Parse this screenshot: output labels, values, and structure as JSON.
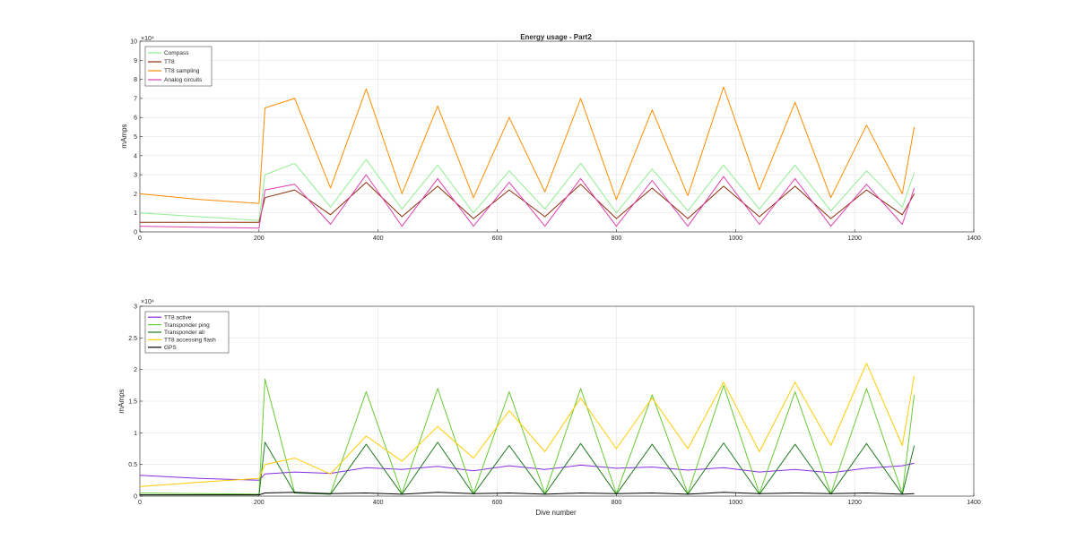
{
  "chart_data": [
    {
      "type": "line",
      "title": "Energy usage - Part2",
      "xlabel": "",
      "ylabel": "mAmps",
      "exponent_label": "×10⁴",
      "xlim": [
        0,
        1400
      ],
      "ylim": [
        0,
        10
      ],
      "xticks": [
        "0",
        "200",
        "400",
        "600",
        "800",
        "1000",
        "1200",
        "1400"
      ],
      "yticks": [
        "0",
        "1",
        "2",
        "3",
        "4",
        "5",
        "6",
        "7",
        "8",
        "9",
        "10"
      ],
      "grid": true,
      "legend_position": "top-left",
      "x": [
        0,
        100,
        200,
        210,
        260,
        320,
        380,
        440,
        500,
        560,
        620,
        680,
        740,
        800,
        860,
        920,
        980,
        1040,
        1100,
        1160,
        1220,
        1280,
        1300
      ],
      "series": [
        {
          "name": "Compass",
          "color": "#90ee90",
          "values": [
            1.0,
            0.8,
            0.6,
            3.0,
            3.6,
            1.3,
            3.8,
            1.2,
            3.5,
            1.0,
            3.2,
            1.2,
            3.6,
            1.0,
            3.3,
            1.1,
            3.5,
            1.2,
            3.5,
            1.1,
            3.2,
            1.3,
            3.1
          ]
        },
        {
          "name": "TT8",
          "color": "#8b2e0a",
          "values": [
            0.5,
            0.5,
            0.5,
            1.8,
            2.2,
            0.9,
            2.6,
            0.8,
            2.4,
            0.7,
            2.2,
            0.8,
            2.5,
            0.7,
            2.3,
            0.7,
            2.4,
            0.8,
            2.4,
            0.7,
            2.2,
            0.9,
            2.0
          ]
        },
        {
          "name": "TT8 sampling",
          "color": "#ff8c00",
          "values": [
            2.0,
            1.7,
            1.5,
            6.5,
            7.0,
            2.3,
            7.5,
            2.0,
            6.6,
            1.8,
            6.0,
            2.1,
            7.0,
            1.7,
            6.4,
            1.9,
            7.6,
            2.2,
            6.8,
            1.8,
            5.6,
            2.0,
            5.5
          ]
        },
        {
          "name": "Analog circuits",
          "color": "#e040b0",
          "values": [
            0.3,
            0.25,
            0.2,
            2.2,
            2.5,
            0.4,
            3.0,
            0.3,
            2.8,
            0.3,
            2.6,
            0.3,
            2.8,
            0.3,
            2.7,
            0.3,
            2.9,
            0.4,
            2.8,
            0.3,
            2.5,
            0.4,
            2.3
          ]
        }
      ]
    },
    {
      "type": "line",
      "title": "",
      "xlabel": "Dive number",
      "ylabel": "mAmps",
      "exponent_label": "×10⁴",
      "xlim": [
        0,
        1400
      ],
      "ylim": [
        0,
        3
      ],
      "xticks": [
        "0",
        "200",
        "400",
        "600",
        "800",
        "1000",
        "1200",
        "1400"
      ],
      "yticks": [
        "0",
        "0.5",
        "1",
        "1.5",
        "2",
        "2.5",
        "3"
      ],
      "grid": true,
      "legend_position": "top-left",
      "x": [
        0,
        100,
        200,
        210,
        260,
        320,
        380,
        440,
        500,
        560,
        620,
        680,
        740,
        800,
        860,
        920,
        980,
        1040,
        1100,
        1160,
        1220,
        1280,
        1300
      ],
      "series": [
        {
          "name": "TT8 active",
          "color": "#8a2be2",
          "values": [
            0.33,
            0.28,
            0.25,
            0.35,
            0.38,
            0.36,
            0.45,
            0.42,
            0.47,
            0.4,
            0.48,
            0.42,
            0.49,
            0.44,
            0.46,
            0.41,
            0.45,
            0.38,
            0.42,
            0.37,
            0.44,
            0.48,
            0.52
          ]
        },
        {
          "name": "Transponder ping",
          "color": "#66cc33",
          "values": [
            0.05,
            0.04,
            0.03,
            1.85,
            0.05,
            0.04,
            1.65,
            0.04,
            1.7,
            0.04,
            1.65,
            0.04,
            1.7,
            0.04,
            1.6,
            0.04,
            1.75,
            0.04,
            1.65,
            0.04,
            1.7,
            0.04,
            1.6
          ]
        },
        {
          "name": "Transponder all",
          "color": "#1f7a1f",
          "values": [
            0.02,
            0.02,
            0.02,
            0.85,
            0.05,
            0.03,
            0.82,
            0.03,
            0.85,
            0.03,
            0.8,
            0.03,
            0.83,
            0.03,
            0.82,
            0.03,
            0.84,
            0.03,
            0.82,
            0.03,
            0.83,
            0.03,
            0.8
          ]
        },
        {
          "name": "TT8 accessing flash",
          "color": "#ffcc00",
          "values": [
            0.15,
            0.22,
            0.28,
            0.5,
            0.6,
            0.35,
            0.95,
            0.55,
            1.1,
            0.6,
            1.35,
            0.7,
            1.55,
            0.75,
            1.55,
            0.75,
            1.8,
            0.7,
            1.8,
            0.8,
            2.1,
            0.8,
            1.9
          ]
        },
        {
          "name": "GPS",
          "color": "#000000",
          "values": [
            0.02,
            0.02,
            0.02,
            0.05,
            0.06,
            0.04,
            0.05,
            0.03,
            0.06,
            0.04,
            0.05,
            0.03,
            0.05,
            0.04,
            0.05,
            0.03,
            0.06,
            0.04,
            0.05,
            0.04,
            0.05,
            0.03,
            0.04
          ]
        }
      ]
    }
  ]
}
